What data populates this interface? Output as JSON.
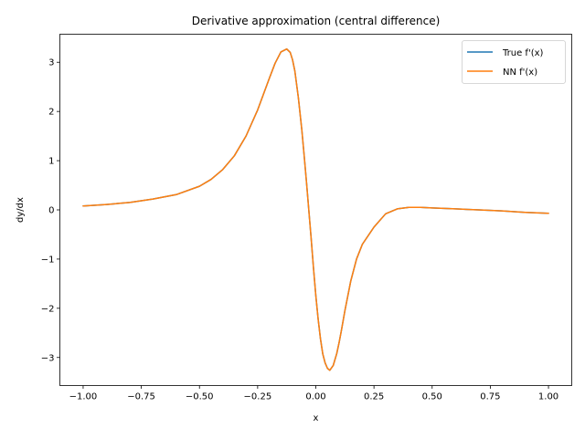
{
  "chart_data": {
    "type": "line",
    "title": "Derivative approximation (central difference)",
    "xlabel": "x",
    "ylabel": "dy/dx",
    "xlim": [
      -1.1,
      1.1
    ],
    "ylim": [
      -3.57,
      3.57
    ],
    "x_ticks": [
      -1.0,
      -0.75,
      -0.5,
      -0.25,
      0.0,
      0.25,
      0.5,
      0.75,
      1.0
    ],
    "x_tick_labels": [
      "−1.00",
      "−0.75",
      "−0.50",
      "−0.25",
      "0.00",
      "0.25",
      "0.50",
      "0.75",
      "1.00"
    ],
    "y_ticks": [
      -3,
      -2,
      -1,
      0,
      1,
      2,
      3
    ],
    "y_tick_labels": [
      "−3",
      "−2",
      "−1",
      "0",
      "1",
      "2",
      "3"
    ],
    "grid": false,
    "legend_position": "top-right",
    "x": [
      -1.0,
      -0.9,
      -0.8,
      -0.7,
      -0.6,
      -0.5,
      -0.45,
      -0.4,
      -0.35,
      -0.3,
      -0.25,
      -0.2,
      -0.175,
      -0.15,
      -0.125,
      -0.11,
      -0.1,
      -0.09,
      -0.075,
      -0.06,
      -0.05,
      -0.04,
      -0.03,
      -0.02,
      -0.01,
      0.0,
      0.01,
      0.02,
      0.03,
      0.04,
      0.05,
      0.06,
      0.075,
      0.09,
      0.1,
      0.11,
      0.125,
      0.15,
      0.175,
      0.2,
      0.25,
      0.3,
      0.35,
      0.4,
      0.45,
      0.5,
      0.6,
      0.7,
      0.8,
      0.9,
      1.0
    ],
    "series": [
      {
        "name": "True f'(x)",
        "color": "#1f77b4",
        "values": [
          0.08,
          0.11,
          0.15,
          0.22,
          0.31,
          0.48,
          0.62,
          0.82,
          1.1,
          1.5,
          2.03,
          2.67,
          2.98,
          3.21,
          3.27,
          3.2,
          3.05,
          2.82,
          2.28,
          1.62,
          1.1,
          0.56,
          -0.01,
          -0.58,
          -1.18,
          -1.74,
          -2.22,
          -2.62,
          -2.93,
          -3.11,
          -3.22,
          -3.26,
          -3.16,
          -2.92,
          -2.7,
          -2.45,
          -2.05,
          -1.45,
          -1.0,
          -0.7,
          -0.35,
          -0.08,
          0.02,
          0.05,
          0.05,
          0.04,
          0.02,
          0.0,
          -0.02,
          -0.05,
          -0.07
        ]
      },
      {
        "name": "NN f'(x)",
        "color": "#ff7f0e",
        "values": [
          0.08,
          0.11,
          0.15,
          0.22,
          0.31,
          0.48,
          0.62,
          0.82,
          1.1,
          1.5,
          2.03,
          2.67,
          2.98,
          3.21,
          3.27,
          3.2,
          3.05,
          2.82,
          2.28,
          1.62,
          1.1,
          0.56,
          -0.01,
          -0.58,
          -1.18,
          -1.74,
          -2.22,
          -2.62,
          -2.93,
          -3.11,
          -3.22,
          -3.26,
          -3.16,
          -2.92,
          -2.7,
          -2.45,
          -2.05,
          -1.45,
          -1.0,
          -0.7,
          -0.35,
          -0.08,
          0.02,
          0.05,
          0.05,
          0.04,
          0.02,
          0.0,
          -0.02,
          -0.05,
          -0.07
        ]
      }
    ]
  }
}
